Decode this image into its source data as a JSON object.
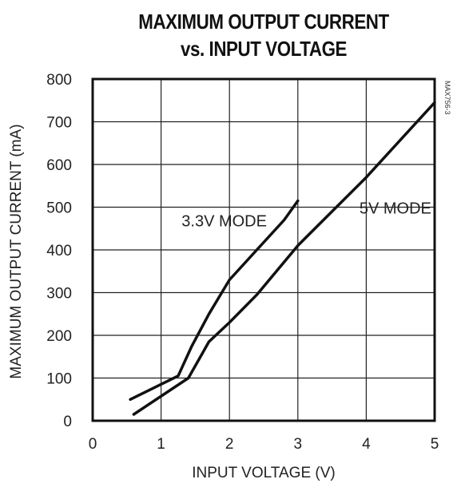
{
  "title_line1": "MAXIMUM OUTPUT CURRENT",
  "title_line2": "vs. INPUT VOLTAGE",
  "figure_code": "MAX756-3",
  "chart_data": {
    "type": "line",
    "xlabel": "INPUT VOLTAGE (V)",
    "ylabel": "MAXIMUM OUTPUT CURRENT (mA)",
    "xlim": [
      0,
      5
    ],
    "ylim": [
      0,
      800
    ],
    "xticks": [
      "0",
      "1",
      "2",
      "3",
      "4",
      "5"
    ],
    "yticks": [
      "0",
      "100",
      "200",
      "300",
      "400",
      "500",
      "600",
      "700",
      "800"
    ],
    "grid": true,
    "series": [
      {
        "name": "3.3V MODE",
        "x": [
          0.55,
          1.25,
          1.45,
          1.7,
          2.0,
          2.4,
          2.8,
          3.0
        ],
        "y": [
          50,
          105,
          175,
          250,
          330,
          400,
          470,
          515
        ]
      },
      {
        "name": "5V MODE",
        "x": [
          0.6,
          1.4,
          1.7,
          2.0,
          2.4,
          3.0,
          4.0,
          5.0
        ],
        "y": [
          15,
          100,
          185,
          230,
          295,
          410,
          570,
          745
        ]
      }
    ]
  }
}
